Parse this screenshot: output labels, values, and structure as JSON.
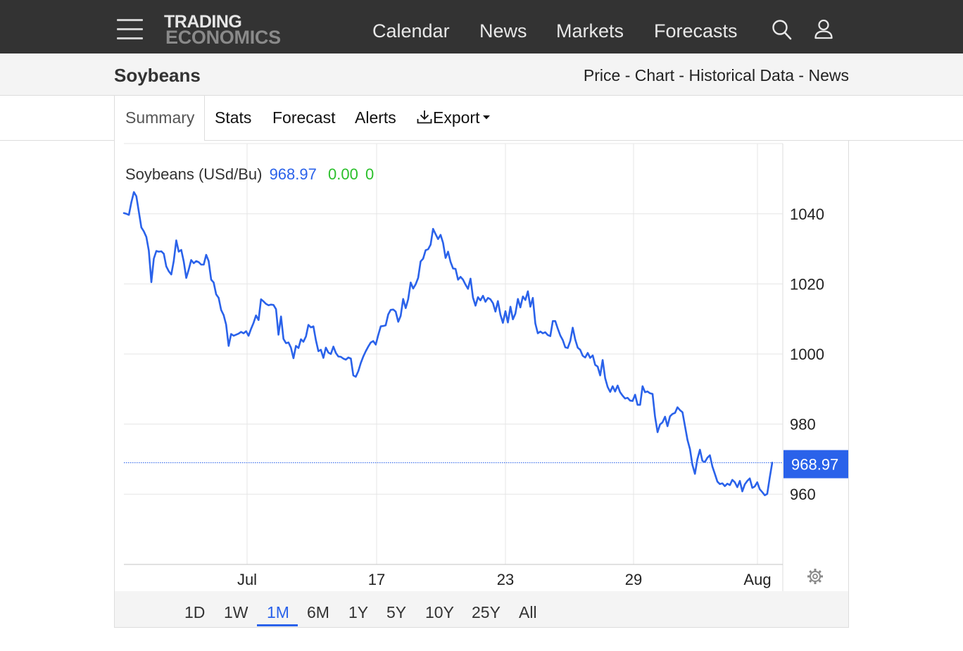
{
  "nav": {
    "logo_line1": "TRADING",
    "logo_line2": "ECONOMICS",
    "links": [
      "Calendar",
      "News",
      "Markets",
      "Forecasts"
    ]
  },
  "subheader": {
    "title": "Soybeans",
    "links": [
      "Price",
      "Chart",
      "Historical Data",
      "News"
    ],
    "separator": " - "
  },
  "tabs": {
    "active": "Summary",
    "items": [
      "Stats",
      "Forecast",
      "Alerts"
    ],
    "export": "Export"
  },
  "legend": {
    "name": "Soybeans (USd/Bu)",
    "price": "968.97",
    "change": "0.00",
    "change_pct": "0"
  },
  "ranges": {
    "items": [
      "1D",
      "1W",
      "1M",
      "6M",
      "1Y",
      "5Y",
      "10Y",
      "25Y",
      "All"
    ],
    "active": "1M"
  },
  "colors": {
    "line": "#2a62ea",
    "change": "#2bc02b",
    "nav_bg": "#333333",
    "grid": "#e6e6e6"
  },
  "chart_data": {
    "type": "line",
    "title": "Soybeans (USd/Bu)",
    "xlabel": "",
    "ylabel": "",
    "x_ticks": [
      "Jul",
      "17",
      "23",
      "29",
      "Aug"
    ],
    "y_ticks": [
      960,
      980,
      1000,
      1020,
      1040
    ],
    "ylim": [
      940,
      1060
    ],
    "last_value": 968.97,
    "last_label": "968.97",
    "grid": true,
    "series": [
      {
        "values": [
          1040.2,
          1040.0,
          1039.7,
          1043.3,
          1046.2,
          1045.0,
          1040.5,
          1036.1,
          1035.0,
          1033.4,
          1029.5,
          1020.5,
          1027.2,
          1029.4,
          1029.2,
          1029.3,
          1028.6,
          1025.0,
          1023.6,
          1022.7,
          1026.5,
          1032.4,
          1029.2,
          1029.7,
          1026.4,
          1021.7,
          1024.1,
          1026.8,
          1025.9,
          1026.5,
          1026.2,
          1025.5,
          1025.5,
          1028.3,
          1026.5,
          1021.2,
          1020.4,
          1017.0,
          1016.0,
          1012.6,
          1011.1,
          1008.4,
          1002.3,
          1005.7,
          1005.2,
          1005.5,
          1005.8,
          1006.3,
          1005.9,
          1006.5,
          1005.2,
          1007.2,
          1008.9,
          1011.0,
          1009.7,
          1015.6,
          1015.0,
          1014.3,
          1013.9,
          1014.1,
          1014.0,
          1012.8,
          1005.5,
          1010.7,
          1004.3,
          1003.1,
          1003.3,
          1001.8,
          998.8,
          1002.3,
          1001.7,
          1004.2,
          1003.5,
          1005.0,
          1008.3,
          1007.6,
          1007.9,
          1003.9,
          1000.8,
          1001.2,
          998.9,
          1001.8,
          1000.4,
          1000.0,
          1002.1,
          1000.3,
          999.3,
          999.2,
          998.7,
          998.4,
          999.0,
          998.7,
          993.9,
          993.5,
          995.1,
          997.4,
          999.3,
          1000.8,
          1002.1,
          1003.3,
          1003.7,
          1002.7,
          1005.4,
          1007.9,
          1008.0,
          1008.2,
          1011.3,
          1012.6,
          1012.7,
          1012.1,
          1009.2,
          1010.9,
          1015.7,
          1013.1,
          1015.6,
          1020.4,
          1018.7,
          1019.9,
          1021.7,
          1026.4,
          1027.2,
          1029.6,
          1029.9,
          1031.2,
          1035.7,
          1034.2,
          1032.8,
          1034.0,
          1031.7,
          1027.4,
          1029.2,
          1026.3,
          1024.4,
          1024.3,
          1021.2,
          1022.0,
          1021.2,
          1019.8,
          1018.6,
          1021.5,
          1016.1,
          1013.8,
          1016.2,
          1015.3,
          1016.6,
          1014.9,
          1016.0,
          1015.6,
          1014.5,
          1012.1,
          1015.1,
          1011.2,
          1008.9,
          1012.2,
          1009.0,
          1013.5,
          1009.9,
          1011.5,
          1015.7,
          1013.3,
          1016.4,
          1015.4,
          1017.9,
          1013.5,
          1016.0,
          1008.7,
          1005.9,
          1006.4,
          1005.9,
          1006.2,
          1005.4,
          1005.1,
          1009.4,
          1009.4,
          1007.2,
          1005.3,
          1004.0,
          1001.9,
          1001.7,
          1003.7,
          1007.5,
          1004.1,
          1001.8,
          1001.2,
          999.5,
          999.0,
          1000.3,
          998.9,
          999.6,
          996.9,
          996.4,
          993.9,
          998.3,
          993.1,
          990.6,
          989.2,
          990.8,
          989.3,
          991.0,
          989.1,
          988.1,
          987.3,
          987.5,
          986.7,
          986.6,
          988.4,
          985.5,
          985.5,
          990.8,
          989.1,
          989.3,
          988.8,
          988.6,
          982.1,
          977.7,
          979.9,
          980.5,
          982.1,
          979.4,
          982.2,
          982.9,
          983.2,
          984.8,
          984.0,
          983.4,
          979.5,
          975.5,
          972.9,
          968.4,
          965.8,
          970.0,
          972.7,
          969.5,
          969.2,
          970.4,
          971.1,
          967.9,
          965.8,
          963.6,
          962.9,
          963.1,
          962.3,
          963.0,
          962.6,
          964.1,
          963.4,
          962.0,
          963.8,
          960.8,
          962.8,
          963.8,
          964.5,
          961.8,
          962.2,
          963.4,
          961.4,
          960.6,
          959.7,
          960.1,
          964.8,
          969.0
        ]
      }
    ]
  }
}
